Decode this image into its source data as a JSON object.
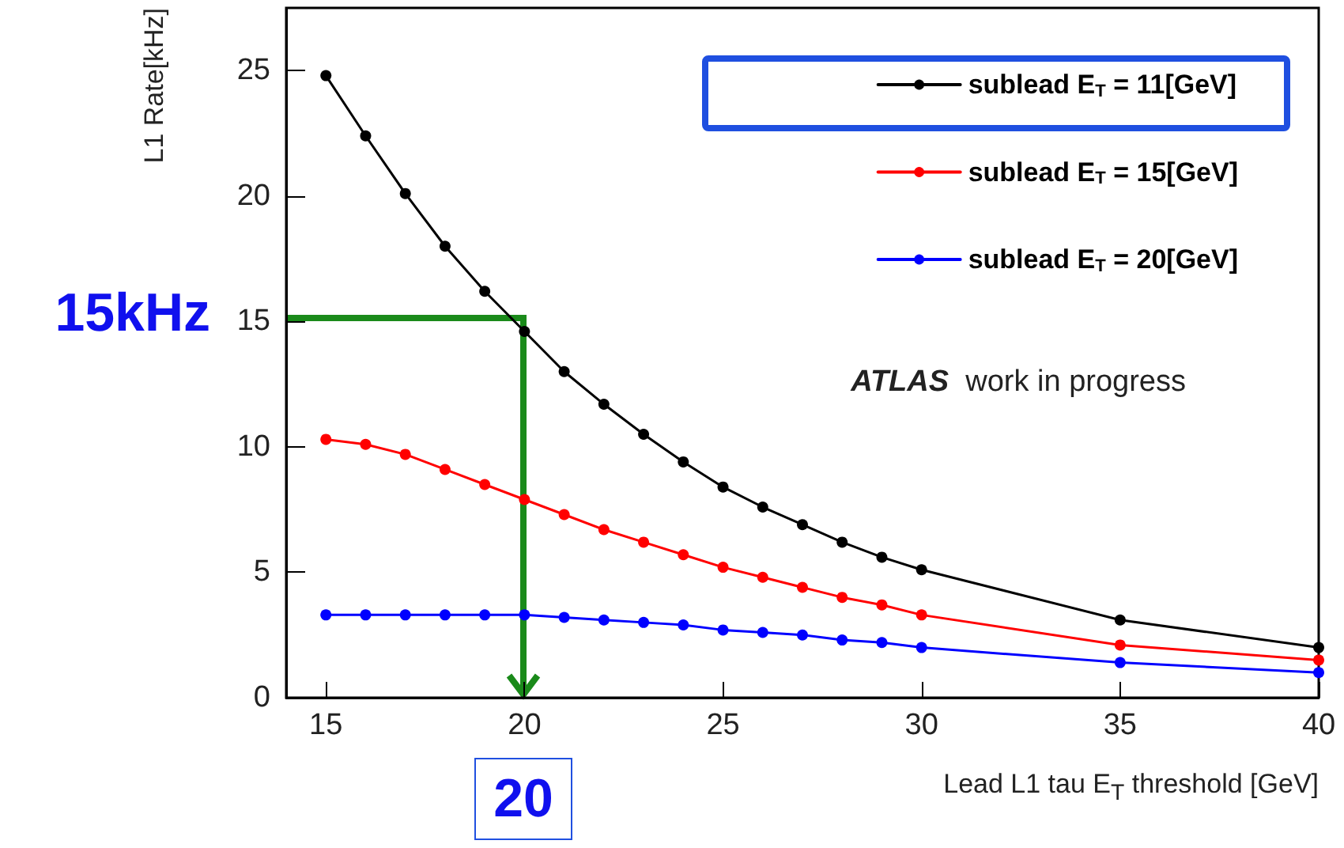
{
  "chart_data": {
    "type": "line",
    "xlabel": "Lead L1 tau E$_{T}$ threshold [GeV]",
    "ylabel": "L1 Rate[kHz]",
    "x": [
      15,
      16,
      17,
      18,
      19,
      20,
      21,
      22,
      23,
      24,
      25,
      26,
      27,
      28,
      29,
      30,
      35,
      40
    ],
    "series": [
      {
        "name": "sublead E$_{T}$ = 11[GeV]",
        "color": "#000000",
        "values": [
          24.8,
          22.4,
          20.1,
          18.0,
          16.2,
          14.6,
          13.0,
          11.7,
          10.5,
          9.4,
          8.4,
          7.6,
          6.9,
          6.2,
          5.6,
          5.1,
          3.1,
          2.0
        ]
      },
      {
        "name": "sublead E$_{T}$ = 15[GeV]",
        "color": "#ff0000",
        "values": [
          10.3,
          10.1,
          9.7,
          9.1,
          8.5,
          7.9,
          7.3,
          6.7,
          6.2,
          5.7,
          5.2,
          4.8,
          4.4,
          4.0,
          3.7,
          3.3,
          2.1,
          1.5
        ]
      },
      {
        "name": "sublead E$_{T}$ = 20[GeV]",
        "color": "#0000ff",
        "values": [
          3.3,
          3.3,
          3.3,
          3.3,
          3.3,
          3.3,
          3.2,
          3.1,
          3.0,
          2.9,
          2.7,
          2.6,
          2.5,
          2.3,
          2.2,
          2.0,
          1.4,
          1.0
        ]
      }
    ],
    "xlim": [
      14,
      40
    ],
    "xticks": [
      15,
      20,
      25,
      30,
      35,
      40
    ],
    "ylim": [
      0,
      27.5
    ],
    "yticks": [
      0,
      5,
      10,
      15,
      20,
      25
    ],
    "grid": false,
    "legend": "top right",
    "marker": "circle",
    "line_style": "solid",
    "annotations": [
      "15kHz",
      "20",
      "ATLAS work in progress"
    ]
  }
}
